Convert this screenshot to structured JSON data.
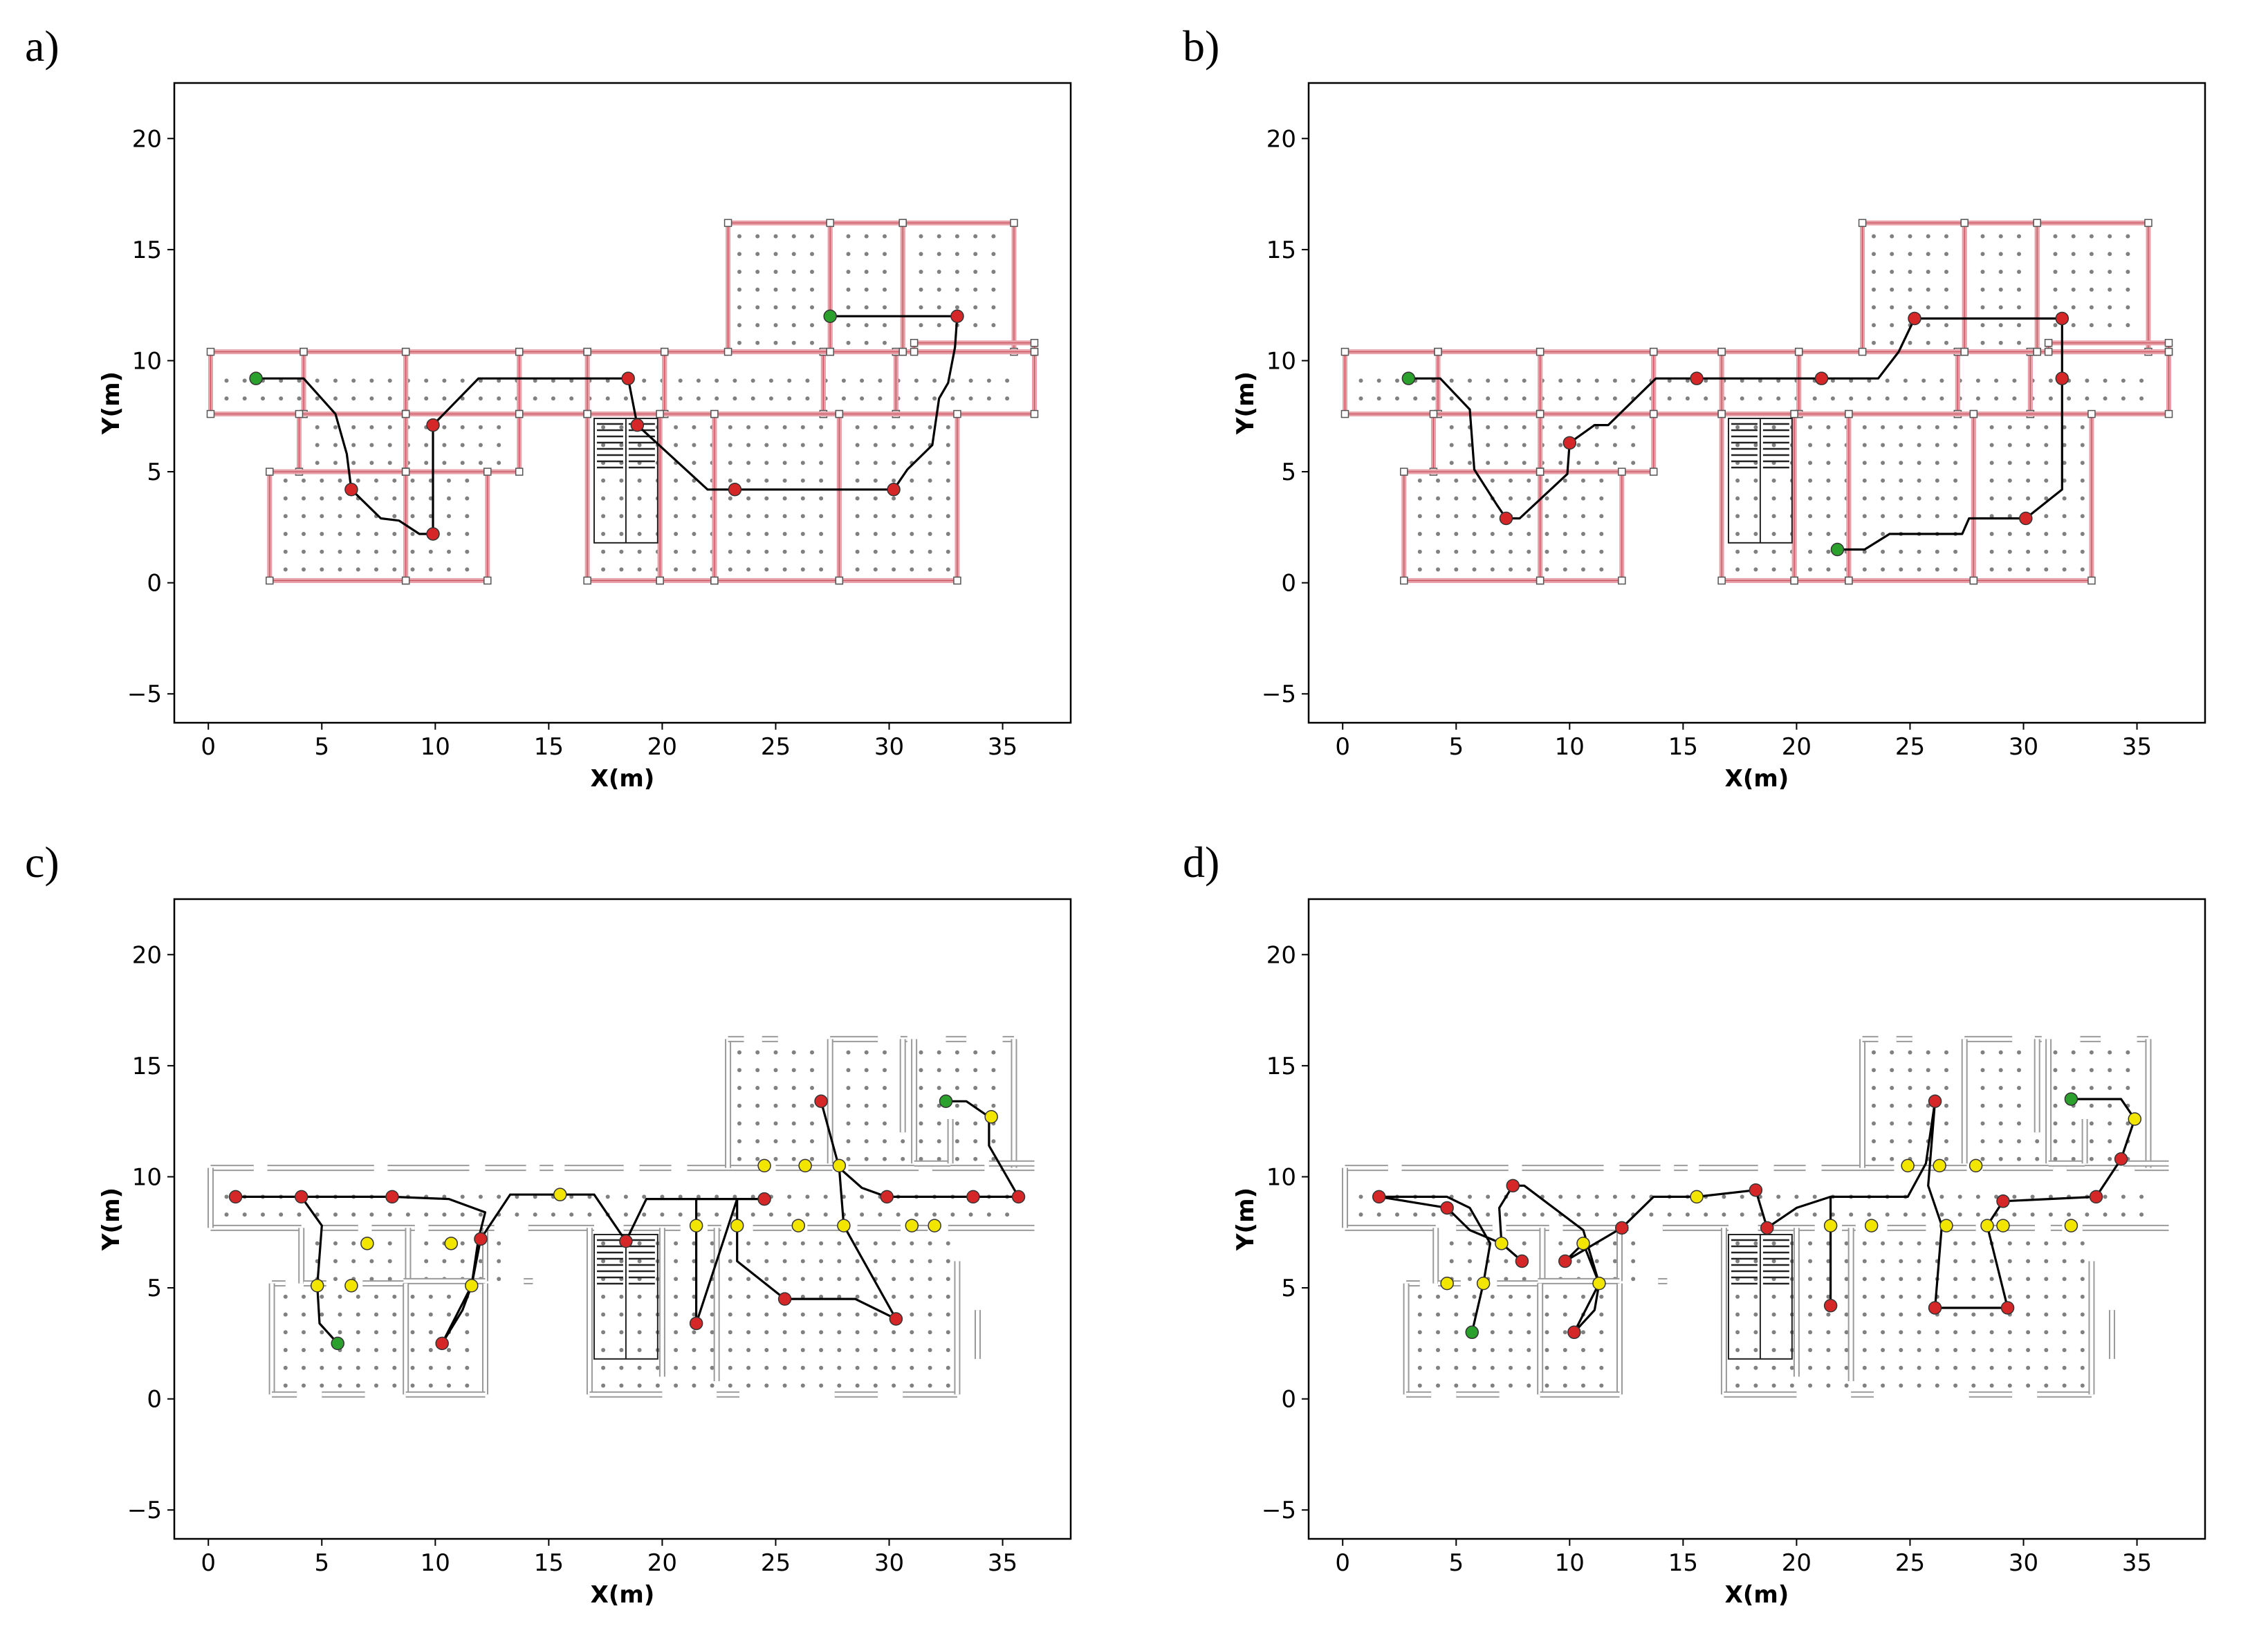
{
  "figure": {
    "panels": [
      "a)",
      "b)",
      "c)",
      "d)"
    ]
  },
  "colors": {
    "path": "#000000",
    "waypoint_red": "#d62728",
    "start_green": "#2ca02c",
    "door_yellow": "#f2e600",
    "room_red": "#e8a0a8",
    "wall_gray": "#7f7f7f",
    "grid_dot": "#808080"
  },
  "chart_data": [
    {
      "type": "scatter",
      "panel_label": "a)",
      "xlabel": "X(m)",
      "ylabel": "Y(m)",
      "xlim": [
        -1.5,
        38
      ],
      "ylim": [
        -6.3,
        22.5
      ],
      "xticks": [
        0,
        5,
        10,
        15,
        20,
        25,
        30,
        35
      ],
      "yticks": [
        -5,
        0,
        5,
        10,
        15,
        20
      ],
      "map_style": "rooms",
      "path": [
        [
          2.1,
          9.2
        ],
        [
          4.2,
          9.2
        ],
        [
          5.6,
          7.6
        ],
        [
          6.1,
          5.8
        ],
        [
          6.3,
          4.2
        ],
        [
          7.6,
          2.9
        ],
        [
          8.4,
          2.8
        ],
        [
          9.3,
          2.2
        ],
        [
          9.9,
          2.2
        ],
        [
          9.9,
          7.1
        ],
        [
          11.9,
          9.2
        ],
        [
          18.5,
          9.2
        ],
        [
          18.9,
          7.1
        ],
        [
          22.0,
          4.2
        ],
        [
          23.2,
          4.2
        ],
        [
          30.2,
          4.2
        ],
        [
          30.8,
          5.1
        ],
        [
          31.9,
          6.2
        ],
        [
          32.2,
          8.3
        ],
        [
          32.6,
          9.0
        ],
        [
          32.9,
          10.6
        ],
        [
          33.0,
          12.0
        ],
        [
          27.4,
          12.0
        ]
      ],
      "waypoints": [
        [
          2.1,
          9.2
        ],
        [
          6.3,
          4.2
        ],
        [
          9.9,
          2.2
        ],
        [
          9.9,
          7.1
        ],
        [
          18.5,
          9.2
        ],
        [
          18.9,
          7.1
        ],
        [
          23.2,
          4.2
        ],
        [
          30.2,
          4.2
        ],
        [
          33.0,
          12.0
        ],
        [
          27.4,
          12.0
        ]
      ],
      "markers": [
        "start",
        "red",
        "red",
        "red",
        "red",
        "red",
        "red",
        "red",
        "red",
        "start"
      ],
      "doors": []
    },
    {
      "type": "scatter",
      "panel_label": "b)",
      "xlabel": "X(m)",
      "ylabel": "Y(m)",
      "xlim": [
        -1.5,
        38
      ],
      "ylim": [
        -6.3,
        22.5
      ],
      "xticks": [
        0,
        5,
        10,
        15,
        20,
        25,
        30,
        35
      ],
      "yticks": [
        -5,
        0,
        5,
        10,
        15,
        20
      ],
      "map_style": "rooms",
      "path": [
        [
          2.9,
          9.2
        ],
        [
          4.3,
          9.2
        ],
        [
          5.6,
          7.8
        ],
        [
          5.8,
          5.1
        ],
        [
          6.8,
          3.5
        ],
        [
          7.2,
          2.9
        ],
        [
          7.8,
          2.9
        ],
        [
          9.9,
          4.9
        ],
        [
          10.0,
          6.3
        ],
        [
          11.1,
          7.1
        ],
        [
          11.7,
          7.1
        ],
        [
          13.8,
          9.2
        ],
        [
          15.6,
          9.2
        ],
        [
          21.1,
          9.2
        ],
        [
          23.6,
          9.2
        ],
        [
          24.5,
          10.4
        ],
        [
          25.2,
          11.9
        ],
        [
          31.7,
          11.9
        ],
        [
          31.7,
          9.2
        ],
        [
          31.7,
          4.2
        ],
        [
          30.1,
          2.9
        ],
        [
          27.6,
          2.9
        ],
        [
          27.3,
          2.2
        ],
        [
          24.1,
          2.2
        ],
        [
          23.0,
          1.5
        ],
        [
          21.8,
          1.5
        ]
      ],
      "waypoints": [
        [
          2.9,
          9.2
        ],
        [
          7.2,
          2.9
        ],
        [
          10.0,
          6.3
        ],
        [
          15.6,
          9.2
        ],
        [
          21.1,
          9.2
        ],
        [
          25.2,
          11.9
        ],
        [
          31.7,
          11.9
        ],
        [
          31.7,
          9.2
        ],
        [
          30.1,
          2.9
        ],
        [
          21.8,
          1.5
        ]
      ],
      "markers": [
        "start",
        "red",
        "red",
        "red",
        "red",
        "red",
        "red",
        "red",
        "red",
        "start"
      ],
      "doors": []
    },
    {
      "type": "scatter",
      "panel_label": "c)",
      "xlabel": "X(m)",
      "ylabel": "Y(m)",
      "xlim": [
        -1.5,
        38
      ],
      "ylim": [
        -6.3,
        22.5
      ],
      "xticks": [
        0,
        5,
        10,
        15,
        20,
        25,
        30,
        35
      ],
      "yticks": [
        -5,
        0,
        5,
        10,
        15,
        20
      ],
      "map_style": "walls",
      "path": [
        [
          5.7,
          2.5
        ],
        [
          4.9,
          3.4
        ],
        [
          4.8,
          5.1
        ],
        [
          5.0,
          7.8
        ],
        [
          4.1,
          9.1
        ],
        [
          1.2,
          9.1
        ],
        [
          8.1,
          9.1
        ],
        [
          10.6,
          9.0
        ],
        [
          12.2,
          8.4
        ],
        [
          11.9,
          7.2
        ],
        [
          11.6,
          5.1
        ],
        [
          11.2,
          4.0
        ],
        [
          10.3,
          2.5
        ],
        [
          11.6,
          5.1
        ],
        [
          12.0,
          7.2
        ],
        [
          13.3,
          9.2
        ],
        [
          15.5,
          9.2
        ],
        [
          17.0,
          9.2
        ],
        [
          18.4,
          7.1
        ],
        [
          19.3,
          9.0
        ],
        [
          21.5,
          9.0
        ],
        [
          24.5,
          9.0
        ],
        [
          21.5,
          9.0
        ],
        [
          21.5,
          3.4
        ],
        [
          23.3,
          9.0
        ],
        [
          23.3,
          6.2
        ],
        [
          25.4,
          4.5
        ],
        [
          28.5,
          4.5
        ],
        [
          30.3,
          3.6
        ],
        [
          28.0,
          7.8
        ],
        [
          27.8,
          10.4
        ],
        [
          27.0,
          13.4
        ],
        [
          27.8,
          10.4
        ],
        [
          28.8,
          9.5
        ],
        [
          29.9,
          9.1
        ],
        [
          33.7,
          9.1
        ],
        [
          35.7,
          9.1
        ],
        [
          34.4,
          11.4
        ],
        [
          34.4,
          12.7
        ],
        [
          33.4,
          13.4
        ],
        [
          32.5,
          13.4
        ]
      ],
      "waypoints": [
        [
          5.7,
          2.5
        ],
        [
          1.2,
          9.1
        ],
        [
          4.1,
          9.1
        ],
        [
          8.1,
          9.1
        ],
        [
          12.0,
          7.2
        ],
        [
          10.3,
          2.5
        ],
        [
          18.4,
          7.1
        ],
        [
          21.5,
          3.4
        ],
        [
          24.5,
          9.0
        ],
        [
          25.4,
          4.5
        ],
        [
          30.3,
          3.6
        ],
        [
          27.0,
          13.4
        ],
        [
          29.9,
          9.1
        ],
        [
          33.7,
          9.1
        ],
        [
          35.7,
          9.1
        ],
        [
          32.5,
          13.4
        ]
      ],
      "markers": [
        "start",
        "red",
        "red",
        "red",
        "red",
        "red",
        "red",
        "red",
        "red",
        "red",
        "red",
        "red",
        "red",
        "red",
        "red",
        "start"
      ],
      "doors": [
        [
          4.8,
          5.1
        ],
        [
          6.3,
          5.1
        ],
        [
          7.0,
          7.0
        ],
        [
          10.7,
          7.0
        ],
        [
          11.6,
          5.1
        ],
        [
          15.5,
          9.2
        ],
        [
          21.5,
          7.8
        ],
        [
          23.3,
          7.8
        ],
        [
          24.5,
          10.5
        ],
        [
          26.3,
          10.5
        ],
        [
          27.8,
          10.5
        ],
        [
          28.0,
          7.8
        ],
        [
          26.0,
          7.8
        ],
        [
          31.0,
          7.8
        ],
        [
          32.0,
          7.8
        ],
        [
          34.5,
          12.7
        ]
      ]
    },
    {
      "type": "scatter",
      "panel_label": "d)",
      "xlabel": "X(m)",
      "ylabel": "Y(m)",
      "xlim": [
        -1.5,
        38
      ],
      "ylim": [
        -6.3,
        22.5
      ],
      "xticks": [
        0,
        5,
        10,
        15,
        20,
        25,
        30,
        35
      ],
      "yticks": [
        -5,
        0,
        5,
        10,
        15,
        20
      ],
      "map_style": "walls",
      "path": [
        [
          5.7,
          3.0
        ],
        [
          6.2,
          5.2
        ],
        [
          6.5,
          7.0
        ],
        [
          5.6,
          8.6
        ],
        [
          4.6,
          9.1
        ],
        [
          1.6,
          9.1
        ],
        [
          4.6,
          8.6
        ],
        [
          5.6,
          7.6
        ],
        [
          7.0,
          7.0
        ],
        [
          7.9,
          6.2
        ],
        [
          7.0,
          7.0
        ],
        [
          6.9,
          8.6
        ],
        [
          7.5,
          9.6
        ],
        [
          8.0,
          9.6
        ],
        [
          10.6,
          7.6
        ],
        [
          11.3,
          5.2
        ],
        [
          11.1,
          4.0
        ],
        [
          10.2,
          3.0
        ],
        [
          11.3,
          5.2
        ],
        [
          10.6,
          7.0
        ],
        [
          9.8,
          6.2
        ],
        [
          12.3,
          7.7
        ],
        [
          13.7,
          9.1
        ],
        [
          15.6,
          9.1
        ],
        [
          18.2,
          9.4
        ],
        [
          18.7,
          7.7
        ],
        [
          20.0,
          8.6
        ],
        [
          21.5,
          9.1
        ],
        [
          21.5,
          4.2
        ],
        [
          21.5,
          9.1
        ],
        [
          24.9,
          9.1
        ],
        [
          25.7,
          10.6
        ],
        [
          26.1,
          13.4
        ],
        [
          25.8,
          9.6
        ],
        [
          26.4,
          7.8
        ],
        [
          26.1,
          4.1
        ],
        [
          29.3,
          4.1
        ],
        [
          28.4,
          7.8
        ],
        [
          29.1,
          8.9
        ],
        [
          33.2,
          9.1
        ],
        [
          34.3,
          10.8
        ],
        [
          34.9,
          12.6
        ],
        [
          34.3,
          13.5
        ],
        [
          32.1,
          13.5
        ]
      ],
      "waypoints": [
        [
          5.7,
          3.0
        ],
        [
          1.6,
          9.1
        ],
        [
          4.6,
          8.6
        ],
        [
          7.9,
          6.2
        ],
        [
          7.5,
          9.6
        ],
        [
          10.2,
          3.0
        ],
        [
          9.8,
          6.2
        ],
        [
          12.3,
          7.7
        ],
        [
          18.2,
          9.4
        ],
        [
          18.7,
          7.7
        ],
        [
          21.5,
          4.2
        ],
        [
          26.1,
          13.4
        ],
        [
          26.1,
          4.1
        ],
        [
          29.3,
          4.1
        ],
        [
          29.1,
          8.9
        ],
        [
          33.2,
          9.1
        ],
        [
          34.3,
          10.8
        ],
        [
          32.1,
          13.5
        ]
      ],
      "markers": [
        "start",
        "red",
        "red",
        "red",
        "red",
        "red",
        "red",
        "red",
        "red",
        "red",
        "red",
        "red",
        "red",
        "red",
        "red",
        "red",
        "red",
        "start"
      ],
      "doors": [
        [
          4.6,
          5.2
        ],
        [
          6.2,
          5.2
        ],
        [
          7.0,
          7.0
        ],
        [
          10.6,
          7.0
        ],
        [
          11.3,
          5.2
        ],
        [
          15.6,
          9.1
        ],
        [
          21.5,
          7.8
        ],
        [
          23.3,
          7.8
        ],
        [
          24.9,
          10.5
        ],
        [
          26.3,
          10.5
        ],
        [
          27.9,
          10.5
        ],
        [
          26.6,
          7.8
        ],
        [
          28.4,
          7.8
        ],
        [
          29.1,
          7.8
        ],
        [
          32.1,
          7.8
        ],
        [
          34.9,
          12.6
        ]
      ]
    }
  ]
}
